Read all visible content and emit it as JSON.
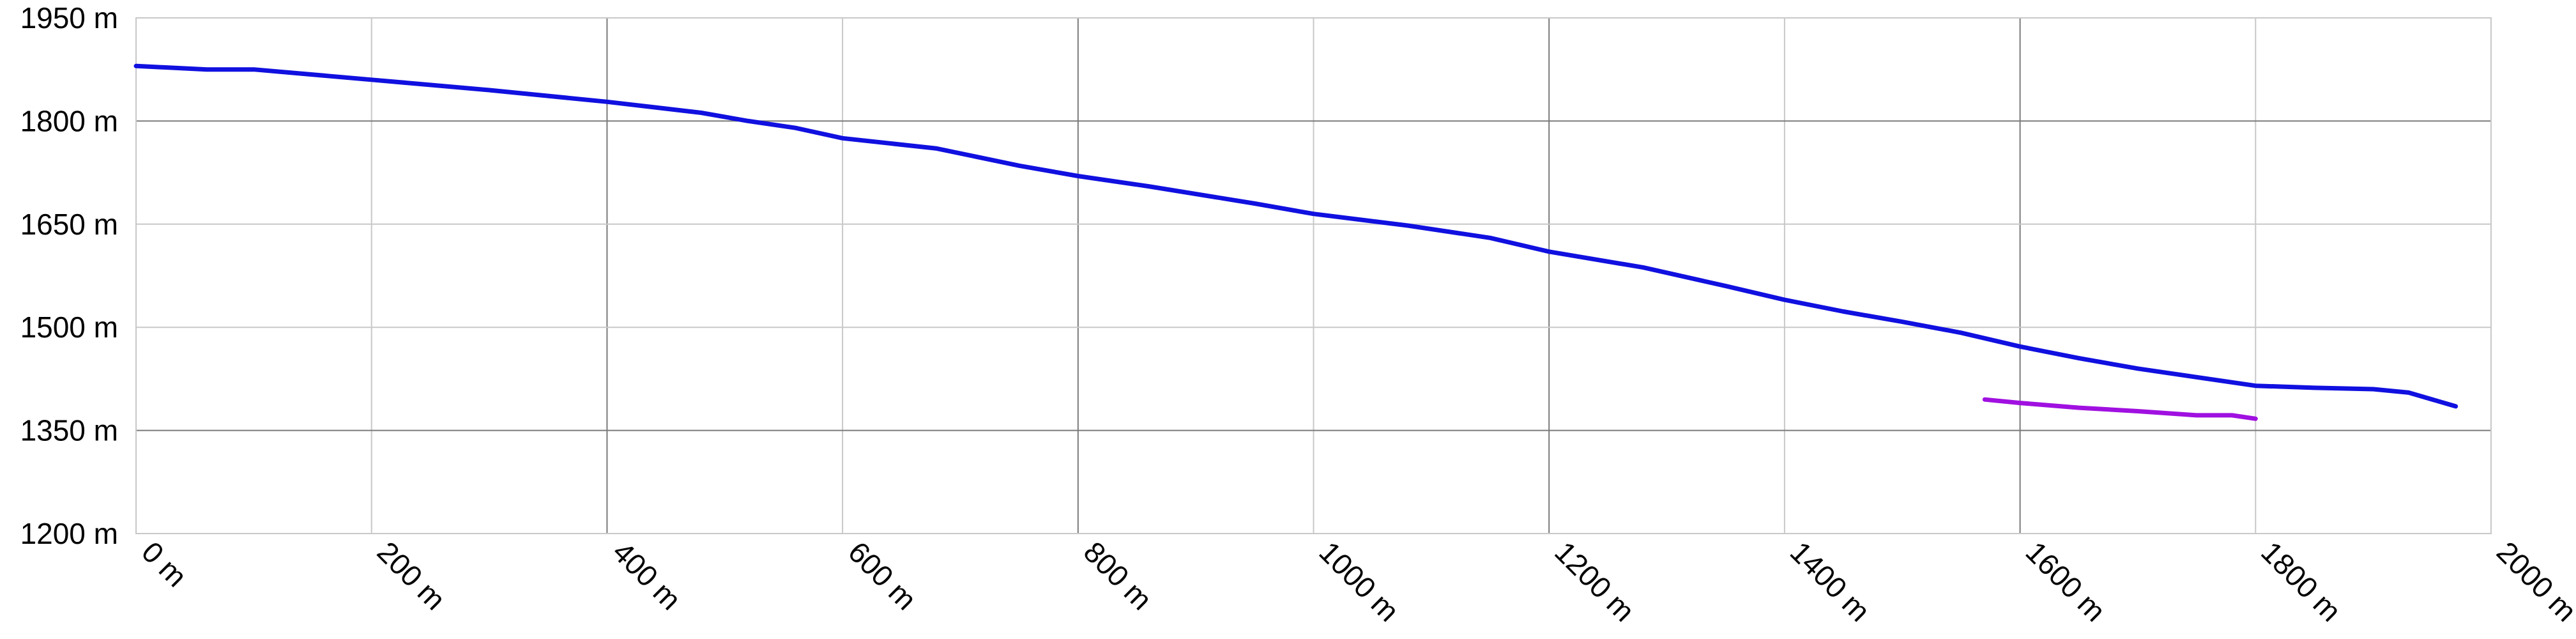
{
  "chart_data": {
    "type": "line",
    "title": "",
    "xlabel": "",
    "ylabel": "",
    "xlim": [
      0,
      2000
    ],
    "ylim": [
      1200,
      1950
    ],
    "x_ticks": [
      {
        "value": 0,
        "label": "0 m"
      },
      {
        "value": 200,
        "label": "200 m"
      },
      {
        "value": 400,
        "label": "400 m"
      },
      {
        "value": 600,
        "label": "600 m"
      },
      {
        "value": 800,
        "label": "800 m"
      },
      {
        "value": 1000,
        "label": "1000 m"
      },
      {
        "value": 1200,
        "label": "1200 m"
      },
      {
        "value": 1400,
        "label": "1400 m"
      },
      {
        "value": 1600,
        "label": "1600 m"
      },
      {
        "value": 1800,
        "label": "1800 m"
      },
      {
        "value": 2000,
        "label": "2000 m"
      }
    ],
    "y_ticks": [
      {
        "value": 1950,
        "label": "1950 m"
      },
      {
        "value": 1800,
        "label": "1800 m"
      },
      {
        "value": 1650,
        "label": "1650 m"
      },
      {
        "value": 1500,
        "label": "1500 m"
      },
      {
        "value": 1350,
        "label": "1350 m"
      },
      {
        "value": 1200,
        "label": "1200 m"
      }
    ],
    "grid": true,
    "legend": "none",
    "series": [
      {
        "color": "#1010e0",
        "x": [
          0,
          60,
          100,
          200,
          300,
          400,
          480,
          520,
          560,
          600,
          680,
          750,
          800,
          860,
          950,
          1000,
          1080,
          1150,
          1200,
          1280,
          1350,
          1400,
          1450,
          1500,
          1550,
          1600,
          1650,
          1700,
          1800,
          1850,
          1900,
          1930,
          1970
        ],
        "y": [
          1880,
          1875,
          1875,
          1860,
          1845,
          1828,
          1812,
          1800,
          1790,
          1775,
          1760,
          1735,
          1720,
          1705,
          1680,
          1665,
          1648,
          1630,
          1610,
          1587,
          1560,
          1540,
          1523,
          1508,
          1492,
          1472,
          1455,
          1440,
          1415,
          1412,
          1410,
          1405,
          1385
        ]
      },
      {
        "color": "#a010e0",
        "x": [
          1570,
          1600,
          1650,
          1700,
          1750,
          1780,
          1800
        ],
        "y": [
          1395,
          1390,
          1383,
          1378,
          1372,
          1372,
          1367
        ]
      }
    ]
  }
}
